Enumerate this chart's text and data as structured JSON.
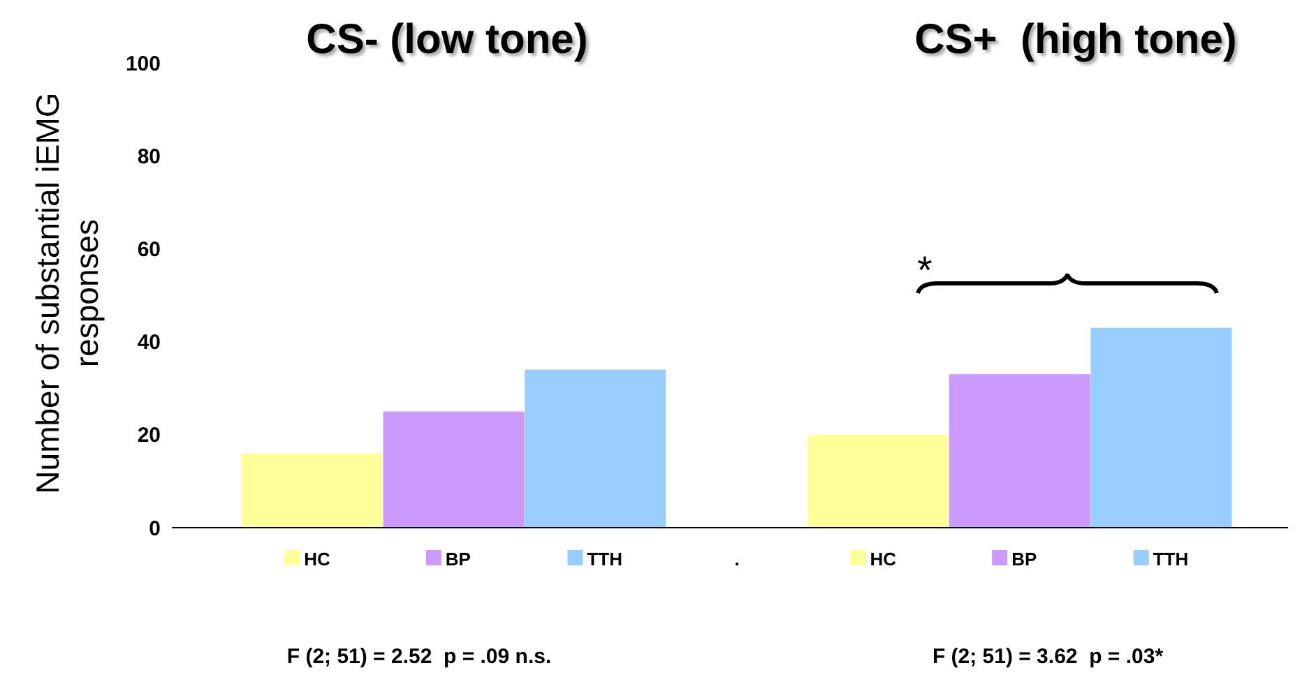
{
  "chart_data": {
    "type": "bar",
    "categories": [
      "HC",
      "BP",
      "TTH",
      ".",
      "HC",
      "BP",
      "TTH"
    ],
    "values": [
      16,
      25,
      34,
      null,
      20,
      33,
      43
    ],
    "colors": [
      "#ffff99",
      "#cc99ff",
      "#99ccff",
      null,
      "#ffff99",
      "#cc99ff",
      "#99ccff"
    ],
    "ylabel": "Number of substantial iEMG responses",
    "ylim": [
      0,
      100
    ],
    "yticks": [
      0,
      20,
      40,
      60,
      80,
      100
    ],
    "grid": false,
    "legend": false,
    "annotations": [
      "CS- (low tone)",
      "CS+  (high tone)",
      "*",
      "F (2; 51) = 2.52  p = .09 n.s.",
      "F (2; 51) = 3.62  p = .03*"
    ]
  }
}
